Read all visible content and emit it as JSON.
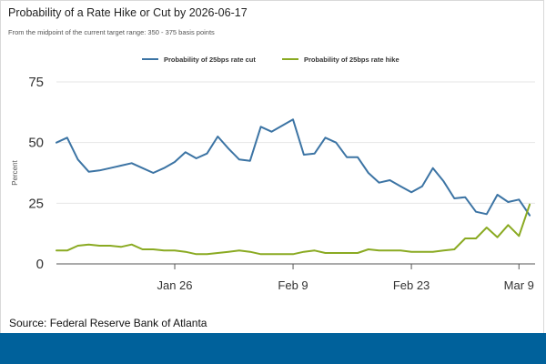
{
  "title": "Probability of a Rate Hike or Cut by 2026-06-17",
  "subtitle": "From the midpoint of the current target range: 350 - 375 basis points",
  "source": "Source: Federal Reserve Bank of Atlanta",
  "colors": {
    "cut": "#3c74a4",
    "hike": "#8aaa22",
    "grid": "#e6e6e6",
    "axis": "#555555",
    "footer": "#00619b"
  },
  "chart_data": {
    "type": "line",
    "title": "Probability of a Rate Hike or Cut by 2026-06-17",
    "xlabel": "",
    "ylabel": "Percent",
    "ylim": [
      0,
      75
    ],
    "yticks": [
      0,
      25,
      50,
      75
    ],
    "xlim": [
      0,
      44.5
    ],
    "xticks": [
      {
        "label": "Jan 26",
        "x": 11
      },
      {
        "label": "Feb 9",
        "x": 22
      },
      {
        "label": "Feb 23",
        "x": 33
      },
      {
        "label": "Mar 9",
        "x": 43
      }
    ],
    "legend": "top-center",
    "series": [
      {
        "name": "Probability of 25bps rate cut",
        "color": "#3c74a4",
        "x": [
          0,
          1,
          2,
          3,
          4,
          5,
          6,
          7,
          8,
          9,
          10,
          11,
          12,
          13,
          14,
          15,
          16,
          17,
          18,
          19,
          20,
          21,
          22,
          23,
          24,
          25,
          26,
          27,
          28,
          29,
          30,
          31,
          32,
          33,
          34,
          35,
          36,
          37,
          38,
          39,
          40,
          41,
          42,
          43,
          44
        ],
        "values": [
          50,
          52,
          43,
          38,
          38.5,
          39.5,
          40.5,
          41.5,
          39.5,
          37.5,
          39.5,
          42,
          46,
          43.5,
          45.5,
          52.5,
          47.5,
          43,
          42.5,
          56.5,
          54.5,
          57,
          59.5,
          45,
          45.5,
          52,
          50,
          44,
          44,
          37.5,
          33.5,
          34.5,
          32,
          29.5,
          32,
          39.5,
          34,
          27,
          27.5,
          21.5,
          20.5,
          28.5,
          25.5,
          26.5,
          20
        ]
      },
      {
        "name": "Probability of 25bps rate hike",
        "color": "#8aaa22",
        "x": [
          0,
          1,
          2,
          3,
          4,
          5,
          6,
          7,
          8,
          9,
          10,
          11,
          12,
          13,
          14,
          15,
          16,
          17,
          18,
          19,
          20,
          21,
          22,
          23,
          24,
          25,
          26,
          27,
          28,
          29,
          30,
          31,
          32,
          33,
          34,
          35,
          36,
          37,
          38,
          39,
          40,
          41,
          42,
          43,
          44
        ],
        "values": [
          5.5,
          5.5,
          7.5,
          8,
          7.5,
          7.5,
          7,
          8,
          6,
          6,
          5.5,
          5.5,
          5,
          4,
          4,
          4.5,
          5,
          5.5,
          5,
          4,
          4,
          4,
          4,
          5,
          5.5,
          4.5,
          4.5,
          4.5,
          4.5,
          6,
          5.5,
          5.5,
          5.5,
          5,
          5,
          5,
          5.5,
          6,
          10.5,
          10.5,
          15,
          11,
          16,
          11.5,
          24.5
        ]
      }
    ]
  }
}
